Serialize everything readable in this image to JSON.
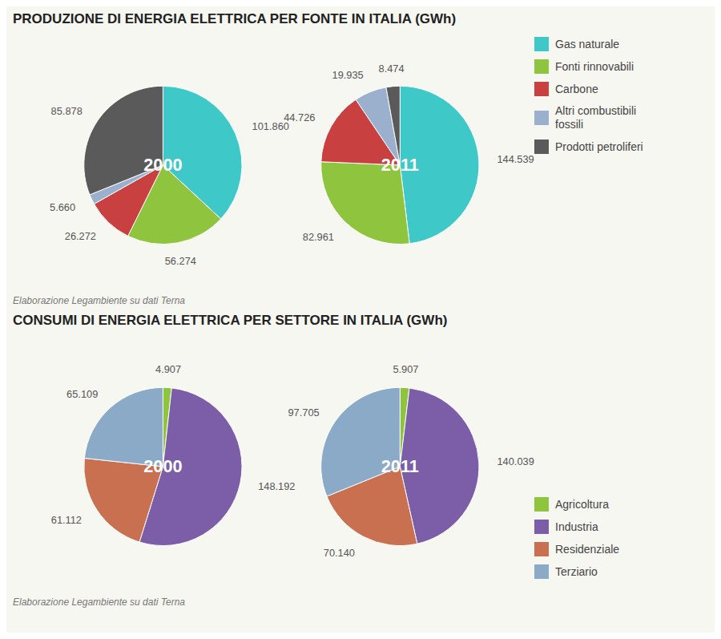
{
  "chart_data": [
    {
      "type": "pie",
      "title": "PRODUZIONE DI ENERGIA ELETTRICA PER FONTE IN ITALIA (GWh)",
      "categories": [
        "Gas naturale",
        "Fonti rinnovabili",
        "Carbone",
        "Altri combustibili\nfossili",
        "Prodotti petroliferi"
      ],
      "colors": [
        "#3ec8c8",
        "#8fc43e",
        "#c94040",
        "#9ab0cc",
        "#5a5a5a"
      ],
      "series": [
        {
          "name": "2000",
          "values": [
            101.86,
            56.274,
            26.272,
            5.66,
            85.878
          ],
          "value_labels": [
            "101.860",
            "56.274",
            "26.272",
            "5.660",
            "85.878"
          ]
        },
        {
          "name": "2011",
          "values": [
            144.539,
            82.961,
            44.726,
            19.935,
            8.474
          ],
          "value_labels": [
            "144.539",
            "82.961",
            "44.726",
            "19.935",
            "8.474"
          ]
        }
      ],
      "data_labels": true,
      "legend": "upper right",
      "annotations": [
        "Elaborazione Legambiente su dati Terna"
      ]
    },
    {
      "type": "pie",
      "title": "CONSUMI DI ENERGIA ELETTRICA PER SETTORE IN ITALIA (GWh)",
      "categories": [
        "Agricoltura",
        "Industria",
        "Residenziale",
        "Terziario"
      ],
      "colors": [
        "#8fc43e",
        "#7b5ea7",
        "#c97050",
        "#8aaac8"
      ],
      "series": [
        {
          "name": "2000",
          "values": [
            4.907,
            148.192,
            61.112,
            65.109
          ],
          "value_labels": [
            "4.907",
            "148.192",
            "61.112",
            "65.109"
          ]
        },
        {
          "name": "2011",
          "values": [
            5.907,
            140.039,
            70.14,
            97.705
          ],
          "value_labels": [
            "5.907",
            "140.039",
            "70.140",
            "97.705"
          ]
        }
      ],
      "data_labels": true,
      "legend": "lower right",
      "annotations": [
        "Elaborazione Legambiente su dati Terna"
      ]
    }
  ]
}
